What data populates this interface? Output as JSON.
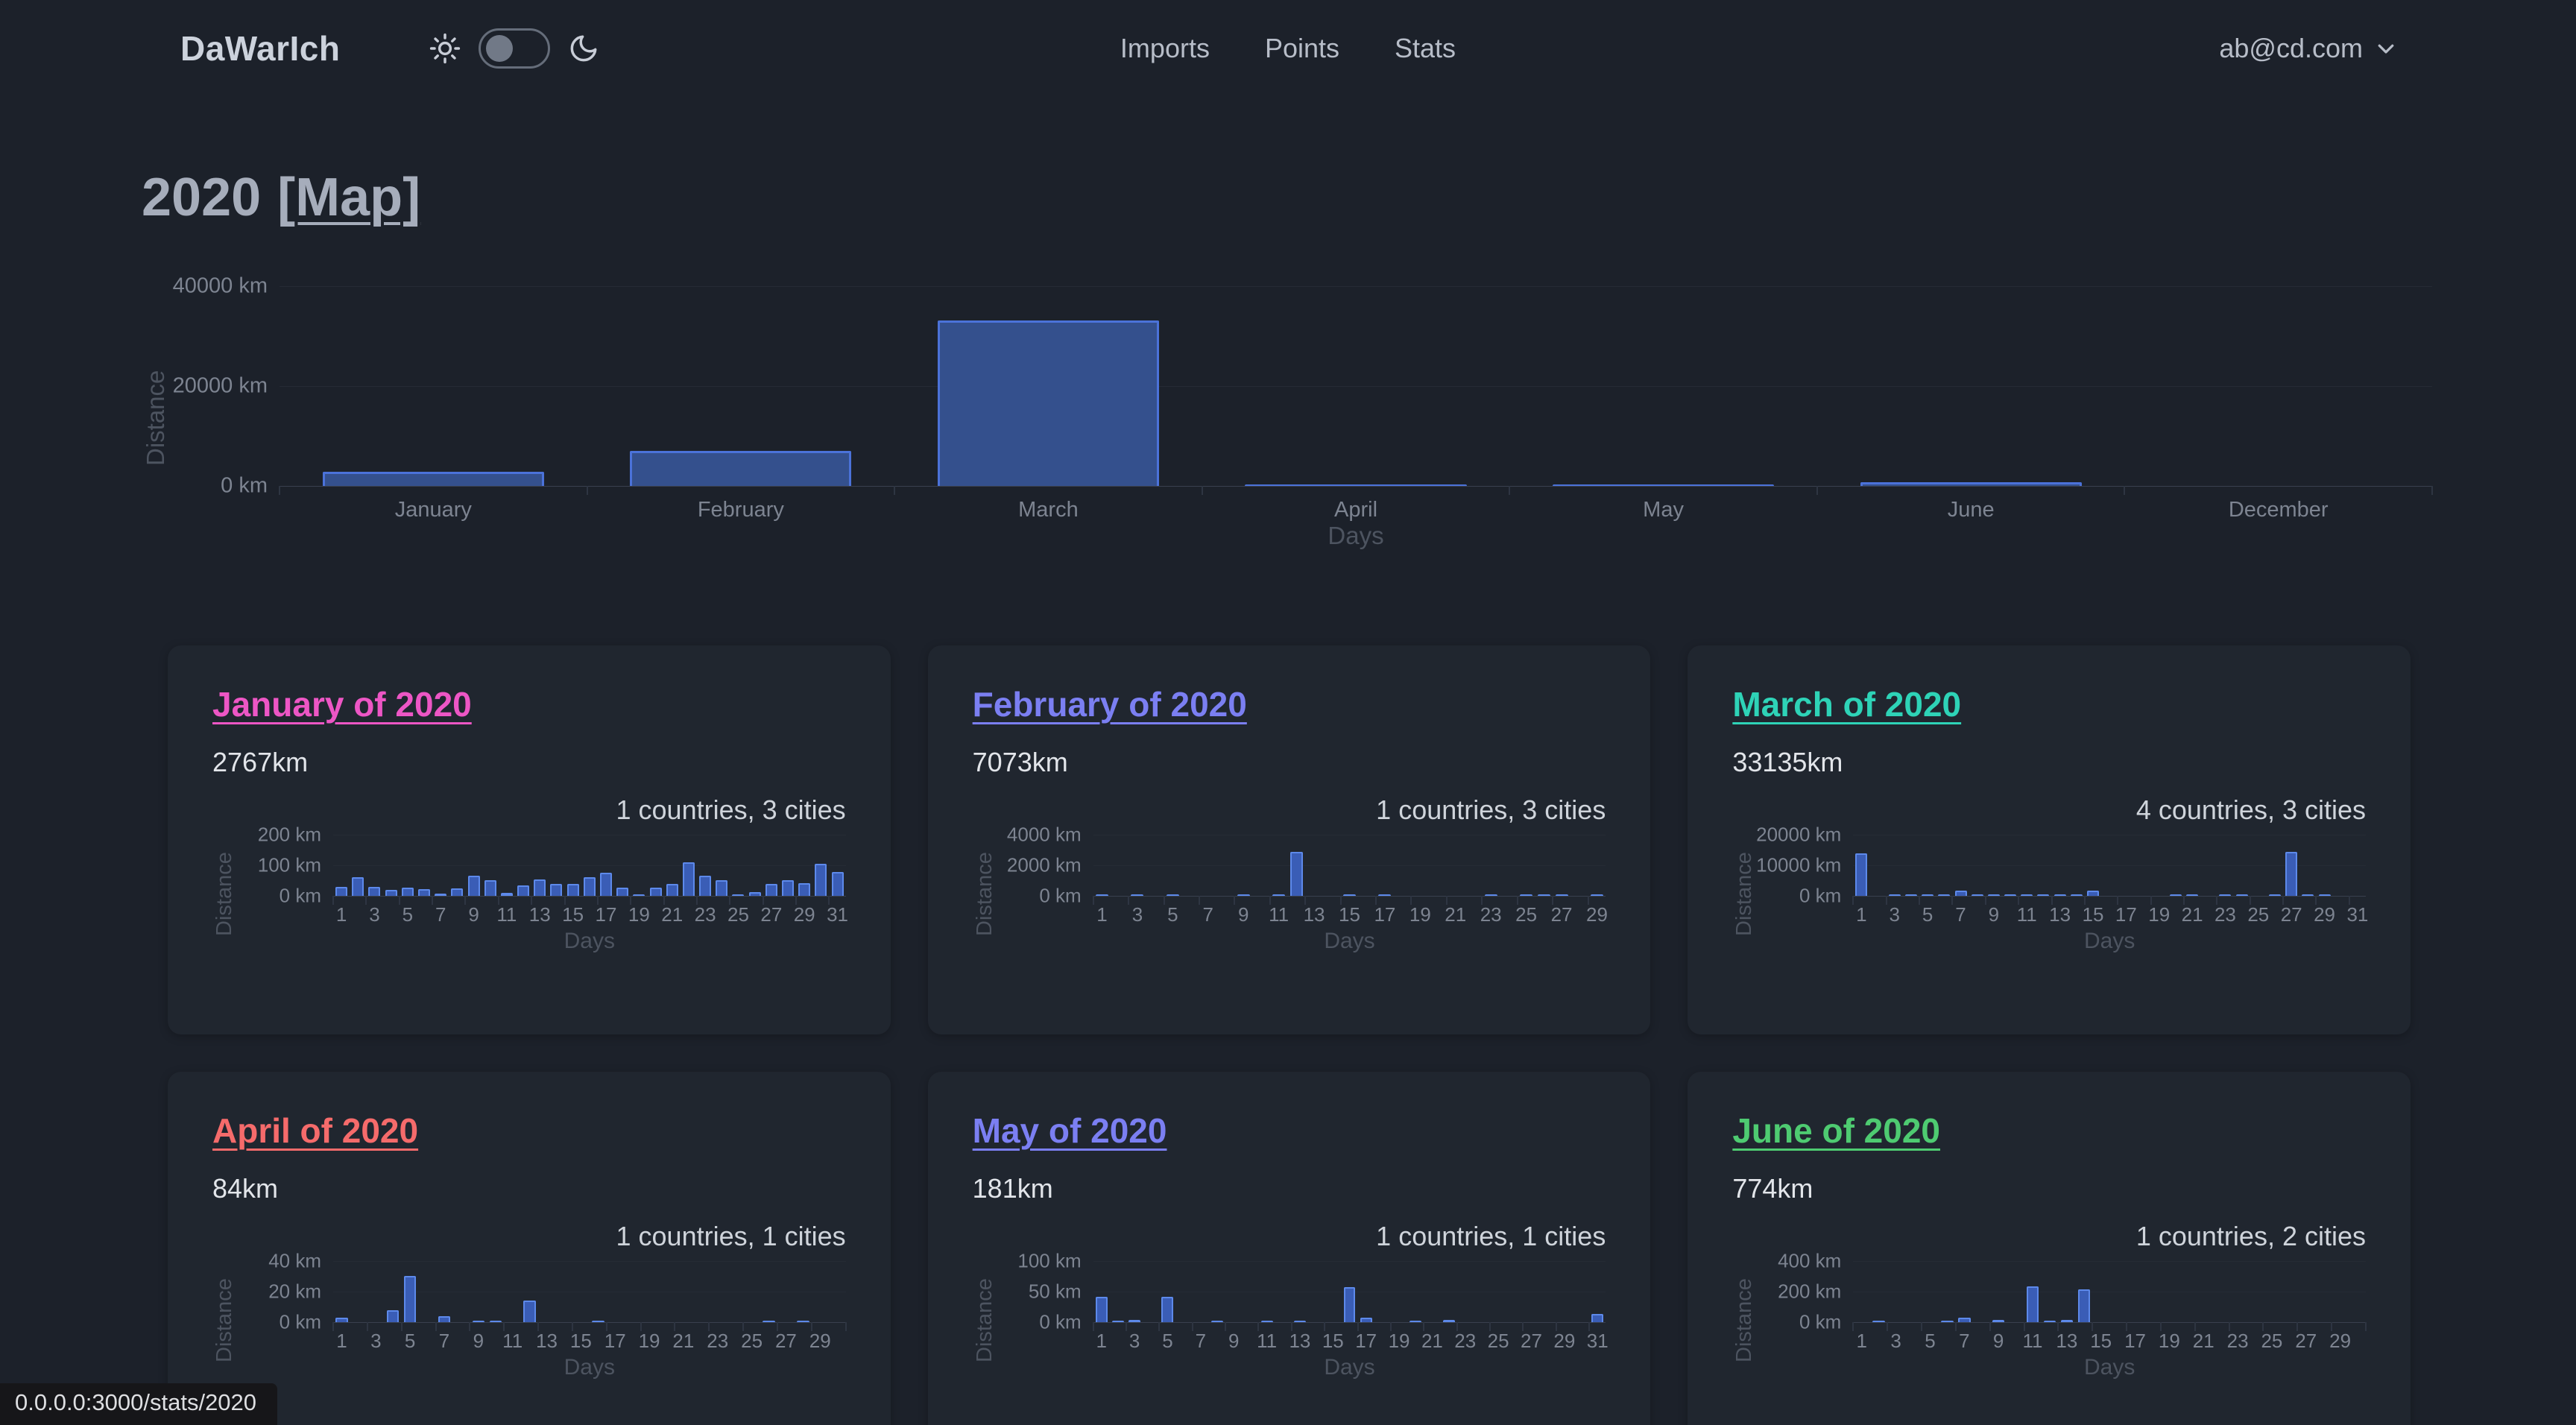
{
  "navbar": {
    "logo": "DaWarIch",
    "links": [
      "Imports",
      "Points",
      "Stats"
    ],
    "user_email": "ab@cd.com"
  },
  "page": {
    "title_year": "2020",
    "title_map_link": "[Map]"
  },
  "status_bar": {
    "url": "0.0.0.0:3000/stats/2020"
  },
  "colors": {
    "bar_fill": "#34508d",
    "bar_border": "#4b72d9",
    "mini_bar_fill": "#3a5db6",
    "mini_bar_border": "#5d89ea"
  },
  "cards": [
    {
      "title": "January of 2020",
      "color": "#ed56c5",
      "distance": "2767km",
      "meta": "1 countries, 3 cities"
    },
    {
      "title": "February of 2020",
      "color": "#7b7ff2",
      "distance": "7073km",
      "meta": "1 countries, 3 cities"
    },
    {
      "title": "March of 2020",
      "color": "#2ed3b7",
      "distance": "33135km",
      "meta": "4 countries, 3 cities"
    },
    {
      "title": "April of 2020",
      "color": "#f56b6b",
      "distance": "84km",
      "meta": "1 countries, 1 cities"
    },
    {
      "title": "May of 2020",
      "color": "#7b7ff2",
      "distance": "181km",
      "meta": "1 countries, 1 cities"
    },
    {
      "title": "June of 2020",
      "color": "#4ecb71",
      "distance": "774km",
      "meta": "1 countries, 2 cities"
    }
  ],
  "chart_data": [
    {
      "type": "bar",
      "title": "Distance per month, 2020",
      "categories": [
        "January",
        "February",
        "March",
        "April",
        "May",
        "June",
        "December"
      ],
      "values": [
        2767,
        7073,
        33135,
        84,
        181,
        774,
        0
      ],
      "xlabel": "Days",
      "ylabel": "Distance",
      "ylim": [
        0,
        40000
      ],
      "ymax": 40000,
      "grid": true,
      "legend": "none",
      "y_ticks": [
        {
          "label": "0 km",
          "value": 0
        },
        {
          "label": "20000 km",
          "value": 20000
        },
        {
          "label": "40000 km",
          "value": 40000
        }
      ]
    },
    {
      "type": "bar",
      "title": "January of 2020 daily distance",
      "x": [
        1,
        2,
        3,
        4,
        5,
        6,
        7,
        8,
        9,
        10,
        11,
        12,
        13,
        14,
        15,
        16,
        17,
        18,
        19,
        20,
        21,
        22,
        23,
        24,
        25,
        26,
        27,
        28,
        29,
        30,
        31
      ],
      "values": [
        30,
        62,
        30,
        20,
        28,
        22,
        8,
        25,
        65,
        50,
        10,
        35,
        53,
        40,
        38,
        60,
        75,
        28,
        3,
        28,
        38,
        110,
        65,
        52,
        2,
        12,
        40,
        52,
        42,
        105,
        78
      ],
      "xlabel": "Days",
      "ylabel": "Distance",
      "ylim": [
        0,
        200
      ],
      "ymax": 200,
      "y_ticks": [
        {
          "label": "0 km",
          "value": 0
        },
        {
          "label": "100 km",
          "value": 100
        },
        {
          "label": "200 km",
          "value": 200
        }
      ],
      "x_ticks": [
        "1",
        "3",
        "5",
        "7",
        "9",
        "11",
        "13",
        "15",
        "17",
        "19",
        "21",
        "23",
        "25",
        "27",
        "29",
        "31"
      ]
    },
    {
      "type": "bar",
      "title": "February of 2020 daily distance",
      "x": [
        1,
        2,
        3,
        4,
        5,
        6,
        7,
        8,
        9,
        10,
        11,
        12,
        13,
        14,
        15,
        16,
        17,
        18,
        19,
        20,
        21,
        22,
        23,
        24,
        25,
        26,
        27,
        28,
        29
      ],
      "values": [
        30,
        0,
        50,
        0,
        40,
        0,
        0,
        0,
        10,
        0,
        20,
        2900,
        0,
        0,
        40,
        0,
        30,
        0,
        0,
        0,
        0,
        0,
        20,
        0,
        50,
        40,
        20,
        0,
        60
      ],
      "xlabel": "Days",
      "ylabel": "Distance",
      "ylim": [
        0,
        4000
      ],
      "ymax": 4000,
      "y_ticks": [
        {
          "label": "0 km",
          "value": 0
        },
        {
          "label": "2000 km",
          "value": 2000
        },
        {
          "label": "4000 km",
          "value": 4000
        }
      ],
      "x_ticks": [
        "1",
        "3",
        "5",
        "7",
        "9",
        "11",
        "13",
        "15",
        "17",
        "19",
        "21",
        "23",
        "25",
        "27",
        "29"
      ]
    },
    {
      "type": "bar",
      "title": "March of 2020 daily distance",
      "x": [
        1,
        2,
        3,
        4,
        5,
        6,
        7,
        8,
        9,
        10,
        11,
        12,
        13,
        14,
        15,
        16,
        17,
        18,
        19,
        20,
        21,
        22,
        23,
        24,
        25,
        26,
        27,
        28,
        29,
        30,
        31
      ],
      "values": [
        14000,
        0,
        150,
        150,
        150,
        150,
        1800,
        150,
        150,
        150,
        150,
        150,
        150,
        150,
        1800,
        0,
        0,
        0,
        0,
        150,
        150,
        0,
        150,
        150,
        0,
        150,
        14300,
        150,
        150,
        0,
        0
      ],
      "xlabel": "Days",
      "ylabel": "Distance",
      "ylim": [
        0,
        20000
      ],
      "ymax": 20000,
      "y_ticks": [
        {
          "label": "0 km",
          "value": 0
        },
        {
          "label": "10000 km",
          "value": 10000
        },
        {
          "label": "20000 km",
          "value": 20000
        }
      ],
      "x_ticks": [
        "1",
        "3",
        "5",
        "7",
        "9",
        "11",
        "13",
        "15",
        "17",
        "19",
        "21",
        "23",
        "25",
        "27",
        "29",
        "31"
      ]
    },
    {
      "type": "bar",
      "title": "April of 2020 daily distance",
      "x": [
        1,
        2,
        3,
        4,
        5,
        6,
        7,
        8,
        9,
        10,
        11,
        12,
        13,
        14,
        15,
        16,
        17,
        18,
        19,
        20,
        21,
        22,
        23,
        24,
        25,
        26,
        27,
        28,
        29,
        30
      ],
      "values": [
        3,
        0,
        0,
        8,
        30,
        0,
        4,
        0,
        1,
        1,
        0,
        14,
        0,
        0,
        0,
        1,
        0,
        0,
        0,
        0,
        0,
        0,
        0,
        0,
        0,
        1,
        0,
        1,
        0,
        0
      ],
      "xlabel": "Days",
      "ylabel": "Distance",
      "ylim": [
        0,
        40
      ],
      "ymax": 40,
      "y_ticks": [
        {
          "label": "0 km",
          "value": 0
        },
        {
          "label": "20 km",
          "value": 20
        },
        {
          "label": "40 km",
          "value": 40
        }
      ],
      "x_ticks": [
        "1",
        "3",
        "5",
        "7",
        "9",
        "11",
        "13",
        "15",
        "17",
        "19",
        "21",
        "23",
        "25",
        "27",
        "29"
      ]
    },
    {
      "type": "bar",
      "title": "May of 2020 daily distance",
      "x": [
        1,
        2,
        3,
        4,
        5,
        6,
        7,
        8,
        9,
        10,
        11,
        12,
        13,
        14,
        15,
        16,
        17,
        18,
        19,
        20,
        21,
        22,
        23,
        24,
        25,
        26,
        27,
        28,
        29,
        30,
        31
      ],
      "values": [
        42,
        3,
        4,
        0,
        42,
        0,
        0,
        1,
        0,
        0,
        1,
        0,
        1,
        0,
        0,
        57,
        7,
        0,
        0,
        1,
        0,
        4,
        0,
        0,
        0,
        0,
        0,
        0,
        0,
        0,
        13
      ],
      "xlabel": "Days",
      "ylabel": "Distance",
      "ylim": [
        0,
        100
      ],
      "ymax": 100,
      "y_ticks": [
        {
          "label": "0 km",
          "value": 0
        },
        {
          "label": "50 km",
          "value": 50
        },
        {
          "label": "100 km",
          "value": 100
        }
      ],
      "x_ticks": [
        "1",
        "3",
        "5",
        "7",
        "9",
        "11",
        "13",
        "15",
        "17",
        "19",
        "21",
        "23",
        "25",
        "27",
        "29",
        "31"
      ]
    },
    {
      "type": "bar",
      "title": "June of 2020 daily distance",
      "x": [
        1,
        2,
        3,
        4,
        5,
        6,
        7,
        8,
        9,
        10,
        11,
        12,
        13,
        14,
        15,
        16,
        17,
        18,
        19,
        20,
        21,
        22,
        23,
        24,
        25,
        26,
        27,
        28,
        29,
        30
      ],
      "values": [
        0,
        12,
        0,
        0,
        0,
        1,
        28,
        0,
        15,
        0,
        235,
        5,
        15,
        215,
        0,
        0,
        0,
        0,
        0,
        0,
        0,
        0,
        0,
        0,
        0,
        0,
        0,
        0,
        0,
        0
      ],
      "xlabel": "Days",
      "ylabel": "Distance",
      "ylim": [
        0,
        400
      ],
      "ymax": 400,
      "y_ticks": [
        {
          "label": "0 km",
          "value": 0
        },
        {
          "label": "200 km",
          "value": 200
        },
        {
          "label": "400 km",
          "value": 400
        }
      ],
      "x_ticks": [
        "1",
        "3",
        "5",
        "7",
        "9",
        "11",
        "13",
        "15",
        "17",
        "19",
        "21",
        "23",
        "25",
        "27",
        "29"
      ]
    }
  ]
}
